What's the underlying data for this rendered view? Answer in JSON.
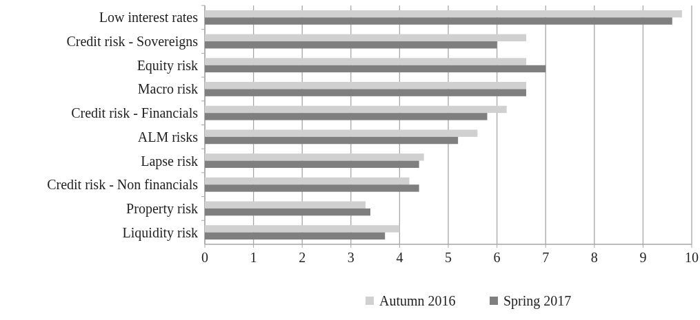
{
  "chart_data": {
    "type": "bar",
    "orientation": "horizontal",
    "categories": [
      "Low interest rates",
      "Credit risk - Sovereigns",
      "Equity risk",
      "Macro risk",
      "Credit risk - Financials",
      "ALM risks",
      "Lapse risk",
      "Credit risk - Non financials",
      "Property risk",
      "Liquidity risk"
    ],
    "series": [
      {
        "name": "Autumn 2016",
        "color": "#d0d0d0",
        "values": [
          9.8,
          6.6,
          6.6,
          6.6,
          6.2,
          5.6,
          4.5,
          4.2,
          3.3,
          4.0
        ]
      },
      {
        "name": "Spring 2017",
        "color": "#7f7f7f",
        "values": [
          9.6,
          6.0,
          7.0,
          6.6,
          5.8,
          5.2,
          4.4,
          4.4,
          3.4,
          3.7
        ]
      }
    ],
    "xlim": [
      0,
      10
    ],
    "xticks": [
      0,
      1,
      2,
      3,
      4,
      5,
      6,
      7,
      8,
      9,
      10
    ],
    "grid": "x",
    "legend": "bottom"
  }
}
